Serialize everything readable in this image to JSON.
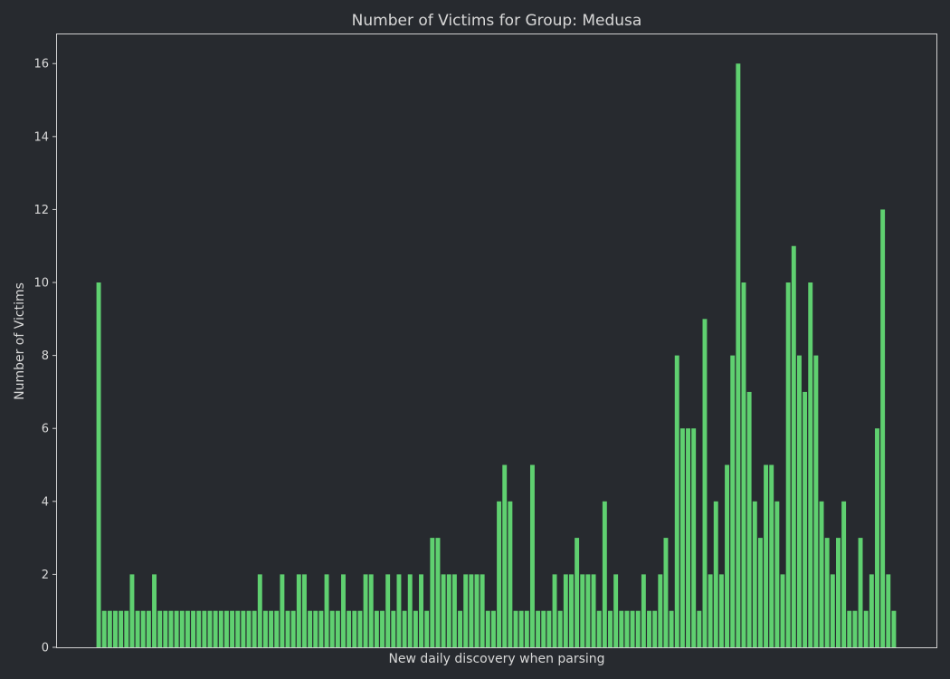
{
  "chart_data": {
    "type": "bar",
    "title": "Number of Victims for Group: Medusa",
    "xlabel": "New daily discovery when parsing",
    "ylabel": "Number of Victims",
    "ylim": [
      0,
      16.8
    ],
    "yticks": [
      0,
      2,
      4,
      6,
      8,
      10,
      12,
      14,
      16
    ],
    "grid": false,
    "bar_color": "#5fd070",
    "background_color": "#272a2f",
    "values": [
      10,
      1,
      1,
      1,
      1,
      1,
      2,
      1,
      1,
      1,
      2,
      1,
      1,
      1,
      1,
      1,
      1,
      1,
      1,
      1,
      1,
      1,
      1,
      1,
      1,
      1,
      1,
      1,
      1,
      2,
      1,
      1,
      1,
      2,
      1,
      1,
      2,
      2,
      1,
      1,
      1,
      2,
      1,
      1,
      2,
      1,
      1,
      1,
      2,
      2,
      1,
      1,
      2,
      1,
      2,
      1,
      2,
      1,
      2,
      1,
      3,
      3,
      2,
      2,
      2,
      1,
      2,
      2,
      2,
      2,
      1,
      1,
      4,
      5,
      4,
      1,
      1,
      1,
      5,
      1,
      1,
      1,
      2,
      1,
      2,
      2,
      3,
      2,
      2,
      2,
      1,
      4,
      1,
      2,
      1,
      1,
      1,
      1,
      2,
      1,
      1,
      2,
      3,
      1,
      8,
      6,
      6,
      6,
      1,
      9,
      2,
      4,
      2,
      5,
      8,
      16,
      10,
      7,
      4,
      3,
      5,
      5,
      4,
      2,
      10,
      11,
      8,
      7,
      10,
      8,
      4,
      3,
      2,
      3,
      4,
      1,
      1,
      3,
      1,
      2,
      6,
      12,
      2,
      1
    ]
  }
}
